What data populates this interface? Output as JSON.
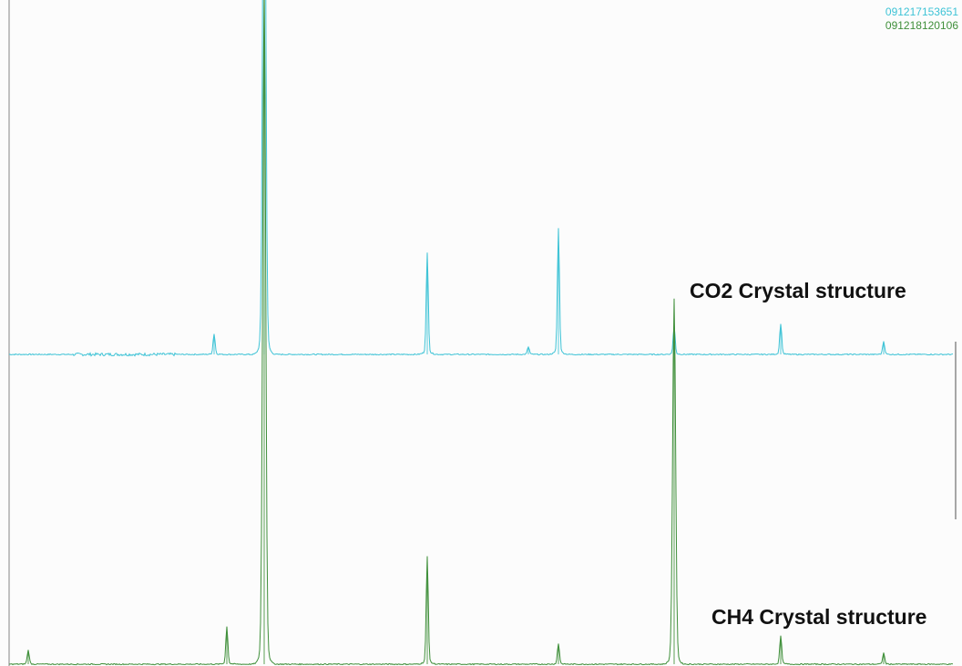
{
  "chart_data": {
    "type": "line",
    "title": "",
    "xlabel": "",
    "ylabel": "",
    "grid": false,
    "legend_position": "top-right",
    "series": [
      {
        "name": "091217153651",
        "color": "#3ec3d6",
        "peaks": [
          {
            "x": 235,
            "h": 22
          },
          {
            "x": 290,
            "h": 700
          },
          {
            "x": 469,
            "h": 108
          },
          {
            "x": 580,
            "h": 8
          },
          {
            "x": 613,
            "h": 135
          },
          {
            "x": 740,
            "h": 30
          },
          {
            "x": 857,
            "h": 33
          },
          {
            "x": 970,
            "h": 14
          }
        ]
      },
      {
        "name": "091218120106",
        "color": "#3f8f3a",
        "peaks": [
          {
            "x": 31,
            "h": 15
          },
          {
            "x": 249,
            "h": 40
          },
          {
            "x": 290,
            "h": 730
          },
          {
            "x": 469,
            "h": 115
          },
          {
            "x": 613,
            "h": 22
          },
          {
            "x": 740,
            "h": 390
          },
          {
            "x": 857,
            "h": 30
          },
          {
            "x": 970,
            "h": 12
          }
        ]
      }
    ],
    "annotations": [
      "CO2 Crystal structure",
      "CH4 Crystal structure"
    ]
  }
}
